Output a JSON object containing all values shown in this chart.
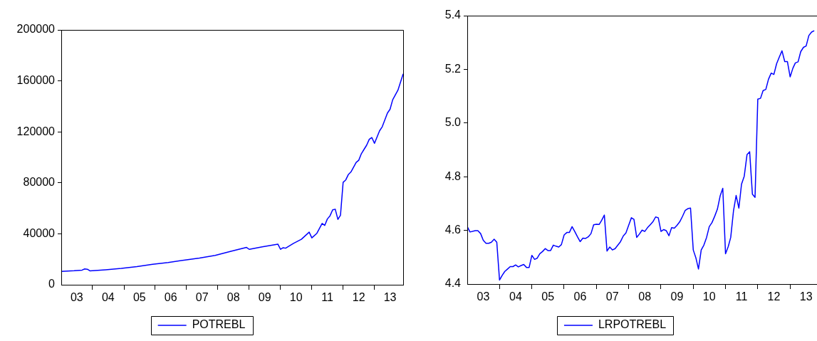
{
  "chart_data": [
    {
      "type": "line",
      "legend": "bottom",
      "x": [
        "2003-01",
        "2003-06",
        "2003-09",
        "2003-10",
        "2003-11",
        "2003-12",
        "2004-06",
        "2004-12",
        "2005-06",
        "2005-12",
        "2006-06",
        "2006-12",
        "2007-06",
        "2007-12",
        "2008-06",
        "2008-12",
        "2009-01",
        "2009-06",
        "2009-12",
        "2010-01",
        "2010-02",
        "2010-03",
        "2010-06",
        "2010-09",
        "2010-12",
        "2011-01",
        "2011-03",
        "2011-05",
        "2011-06",
        "2011-07",
        "2011-08",
        "2011-09",
        "2011-10",
        "2011-11",
        "2011-12",
        "2012-01",
        "2012-02",
        "2012-03",
        "2012-04",
        "2012-06",
        "2012-07",
        "2012-08",
        "2012-10",
        "2012-11",
        "2012-12",
        "2013-01",
        "2013-03",
        "2013-04",
        "2013-06",
        "2013-07",
        "2013-08",
        "2013-10",
        "2013-12"
      ],
      "series": [
        {
          "name": "POTREBL",
          "color": "#0000ff",
          "values": [
            10500,
            11000,
            11500,
            12400,
            12200,
            10900,
            11800,
            12800,
            14300,
            16100,
            17500,
            19300,
            21000,
            23100,
            26300,
            29300,
            27800,
            29700,
            31900,
            27800,
            29100,
            28700,
            32500,
            35700,
            41300,
            36800,
            40400,
            48100,
            46600,
            51600,
            54100,
            58800,
            59300,
            51300,
            54500,
            80400,
            82300,
            86400,
            88500,
            96000,
            97700,
            102900,
            109500,
            114200,
            115500,
            111000,
            120800,
            124000,
            134800,
            137700,
            145200,
            152700,
            165500
          ]
        }
      ],
      "xlim": [
        "2003-01",
        "2013-12"
      ],
      "xticks": [
        {
          "value": "2003-07",
          "label": "03"
        },
        {
          "value": "2004-01",
          "label": null
        },
        {
          "value": "2004-07",
          "label": "04"
        },
        {
          "value": "2005-01",
          "label": null
        },
        {
          "value": "2005-07",
          "label": "05"
        },
        {
          "value": "2006-01",
          "label": null
        },
        {
          "value": "2006-07",
          "label": "06"
        },
        {
          "value": "2007-01",
          "label": null
        },
        {
          "value": "2007-07",
          "label": "07"
        },
        {
          "value": "2008-01",
          "label": null
        },
        {
          "value": "2008-07",
          "label": "08"
        },
        {
          "value": "2009-01",
          "label": null
        },
        {
          "value": "2009-07",
          "label": "09"
        },
        {
          "value": "2010-01",
          "label": null
        },
        {
          "value": "2010-07",
          "label": "10"
        },
        {
          "value": "2011-01",
          "label": null
        },
        {
          "value": "2011-07",
          "label": "11"
        },
        {
          "value": "2012-01",
          "label": null
        },
        {
          "value": "2012-07",
          "label": "12"
        },
        {
          "value": "2013-01",
          "label": null
        },
        {
          "value": "2013-07",
          "label": "13"
        }
      ],
      "ylim": [
        0,
        200000
      ],
      "yticks": [
        0,
        40000,
        80000,
        120000,
        160000,
        200000
      ]
    },
    {
      "type": "line",
      "legend": "bottom",
      "x": [
        "2003-01",
        "2003-02",
        "2003-04",
        "2003-05",
        "2003-06",
        "2003-07",
        "2003-08",
        "2003-09",
        "2003-10",
        "2003-11",
        "2003-12",
        "2004-01",
        "2004-02",
        "2004-03",
        "2004-04",
        "2004-05",
        "2004-06",
        "2004-07",
        "2004-08",
        "2004-09",
        "2004-10",
        "2004-11",
        "2004-12",
        "2005-01",
        "2005-02",
        "2005-03",
        "2005-04",
        "2005-05",
        "2005-06",
        "2005-07",
        "2005-08",
        "2005-09",
        "2005-10",
        "2005-11",
        "2005-12",
        "2006-01",
        "2006-02",
        "2006-03",
        "2006-04",
        "2006-05",
        "2006-06",
        "2006-07",
        "2006-08",
        "2006-09",
        "2006-10",
        "2006-11",
        "2006-12",
        "2007-01",
        "2007-02",
        "2007-03",
        "2007-04",
        "2007-05",
        "2007-06",
        "2007-07",
        "2007-08",
        "2007-09",
        "2007-10",
        "2007-11",
        "2007-12",
        "2008-01",
        "2008-02",
        "2008-03",
        "2008-04",
        "2008-05",
        "2008-06",
        "2008-07",
        "2008-08",
        "2008-09",
        "2008-10",
        "2008-11",
        "2008-12",
        "2009-01",
        "2009-02",
        "2009-03",
        "2009-04",
        "2009-05",
        "2009-06",
        "2009-07",
        "2009-08",
        "2009-09",
        "2009-10",
        "2009-11",
        "2009-12",
        "2010-01",
        "2010-02",
        "2010-03",
        "2010-04",
        "2010-05",
        "2010-06",
        "2010-07",
        "2010-08",
        "2010-09",
        "2010-10",
        "2010-11",
        "2010-12",
        "2011-01",
        "2011-02",
        "2011-03",
        "2011-04",
        "2011-05",
        "2011-06",
        "2011-07",
        "2011-08",
        "2011-09",
        "2011-10",
        "2011-11",
        "2011-12",
        "2012-01",
        "2012-02",
        "2012-03",
        "2012-04",
        "2012-05",
        "2012-06",
        "2012-07",
        "2012-08",
        "2012-09",
        "2012-10",
        "2012-11",
        "2012-12",
        "2013-01",
        "2013-02",
        "2013-03",
        "2013-04",
        "2013-05",
        "2013-06",
        "2013-07",
        "2013-08",
        "2013-09",
        "2013-10"
      ],
      "series": [
        {
          "name": "LRPOTREBL",
          "color": "#0000ff",
          "values": [
            4.614,
            4.594,
            4.599,
            4.599,
            4.588,
            4.563,
            4.552,
            4.552,
            4.556,
            4.567,
            4.556,
            4.415,
            4.433,
            4.447,
            4.456,
            4.465,
            4.465,
            4.471,
            4.464,
            4.469,
            4.473,
            4.462,
            4.462,
            4.507,
            4.492,
            4.496,
            4.513,
            4.521,
            4.532,
            4.525,
            4.525,
            4.545,
            4.541,
            4.538,
            4.547,
            4.583,
            4.592,
            4.592,
            4.614,
            4.596,
            4.576,
            4.558,
            4.571,
            4.57,
            4.576,
            4.588,
            4.621,
            4.623,
            4.622,
            4.637,
            4.657,
            4.523,
            4.538,
            4.527,
            4.532,
            4.545,
            4.558,
            4.579,
            4.59,
            4.619,
            4.647,
            4.641,
            4.574,
            4.586,
            4.601,
            4.596,
            4.61,
            4.621,
            4.632,
            4.65,
            4.647,
            4.596,
            4.603,
            4.599,
            4.58,
            4.61,
            4.608,
            4.619,
            4.632,
            4.652,
            4.674,
            4.681,
            4.683,
            4.527,
            4.496,
            4.456,
            4.527,
            4.545,
            4.574,
            4.614,
            4.629,
            4.653,
            4.679,
            4.728,
            4.757,
            4.513,
            4.54,
            4.574,
            4.672,
            4.73,
            4.683,
            4.772,
            4.802,
            4.882,
            4.893,
            4.735,
            4.723,
            5.089,
            5.092,
            5.121,
            5.125,
            5.163,
            5.186,
            5.181,
            5.221,
            5.246,
            5.269,
            5.229,
            5.229,
            5.172,
            5.204,
            5.224,
            5.228,
            5.266,
            5.282,
            5.287,
            5.326,
            5.339,
            5.344
          ]
        }
      ],
      "xlim": [
        "2003-01",
        "2013-11"
      ],
      "xticks": [
        {
          "value": "2003-07",
          "label": "03"
        },
        {
          "value": "2004-01",
          "label": null
        },
        {
          "value": "2004-07",
          "label": "04"
        },
        {
          "value": "2005-01",
          "label": null
        },
        {
          "value": "2005-07",
          "label": "05"
        },
        {
          "value": "2006-01",
          "label": null
        },
        {
          "value": "2006-07",
          "label": "06"
        },
        {
          "value": "2007-01",
          "label": null
        },
        {
          "value": "2007-07",
          "label": "07"
        },
        {
          "value": "2008-01",
          "label": null
        },
        {
          "value": "2008-07",
          "label": "08"
        },
        {
          "value": "2009-01",
          "label": null
        },
        {
          "value": "2009-07",
          "label": "09"
        },
        {
          "value": "2010-01",
          "label": null
        },
        {
          "value": "2010-07",
          "label": "10"
        },
        {
          "value": "2011-01",
          "label": null
        },
        {
          "value": "2011-07",
          "label": "11"
        },
        {
          "value": "2012-01",
          "label": null
        },
        {
          "value": "2012-07",
          "label": "12"
        },
        {
          "value": "2013-01",
          "label": null
        },
        {
          "value": "2013-07",
          "label": "13"
        }
      ],
      "ylim": [
        4.4,
        5.4
      ],
      "yticks": [
        4.4,
        4.6,
        4.8,
        {
          "value": 5,
          "label": "5.0"
        },
        5.2,
        5.4
      ]
    }
  ]
}
